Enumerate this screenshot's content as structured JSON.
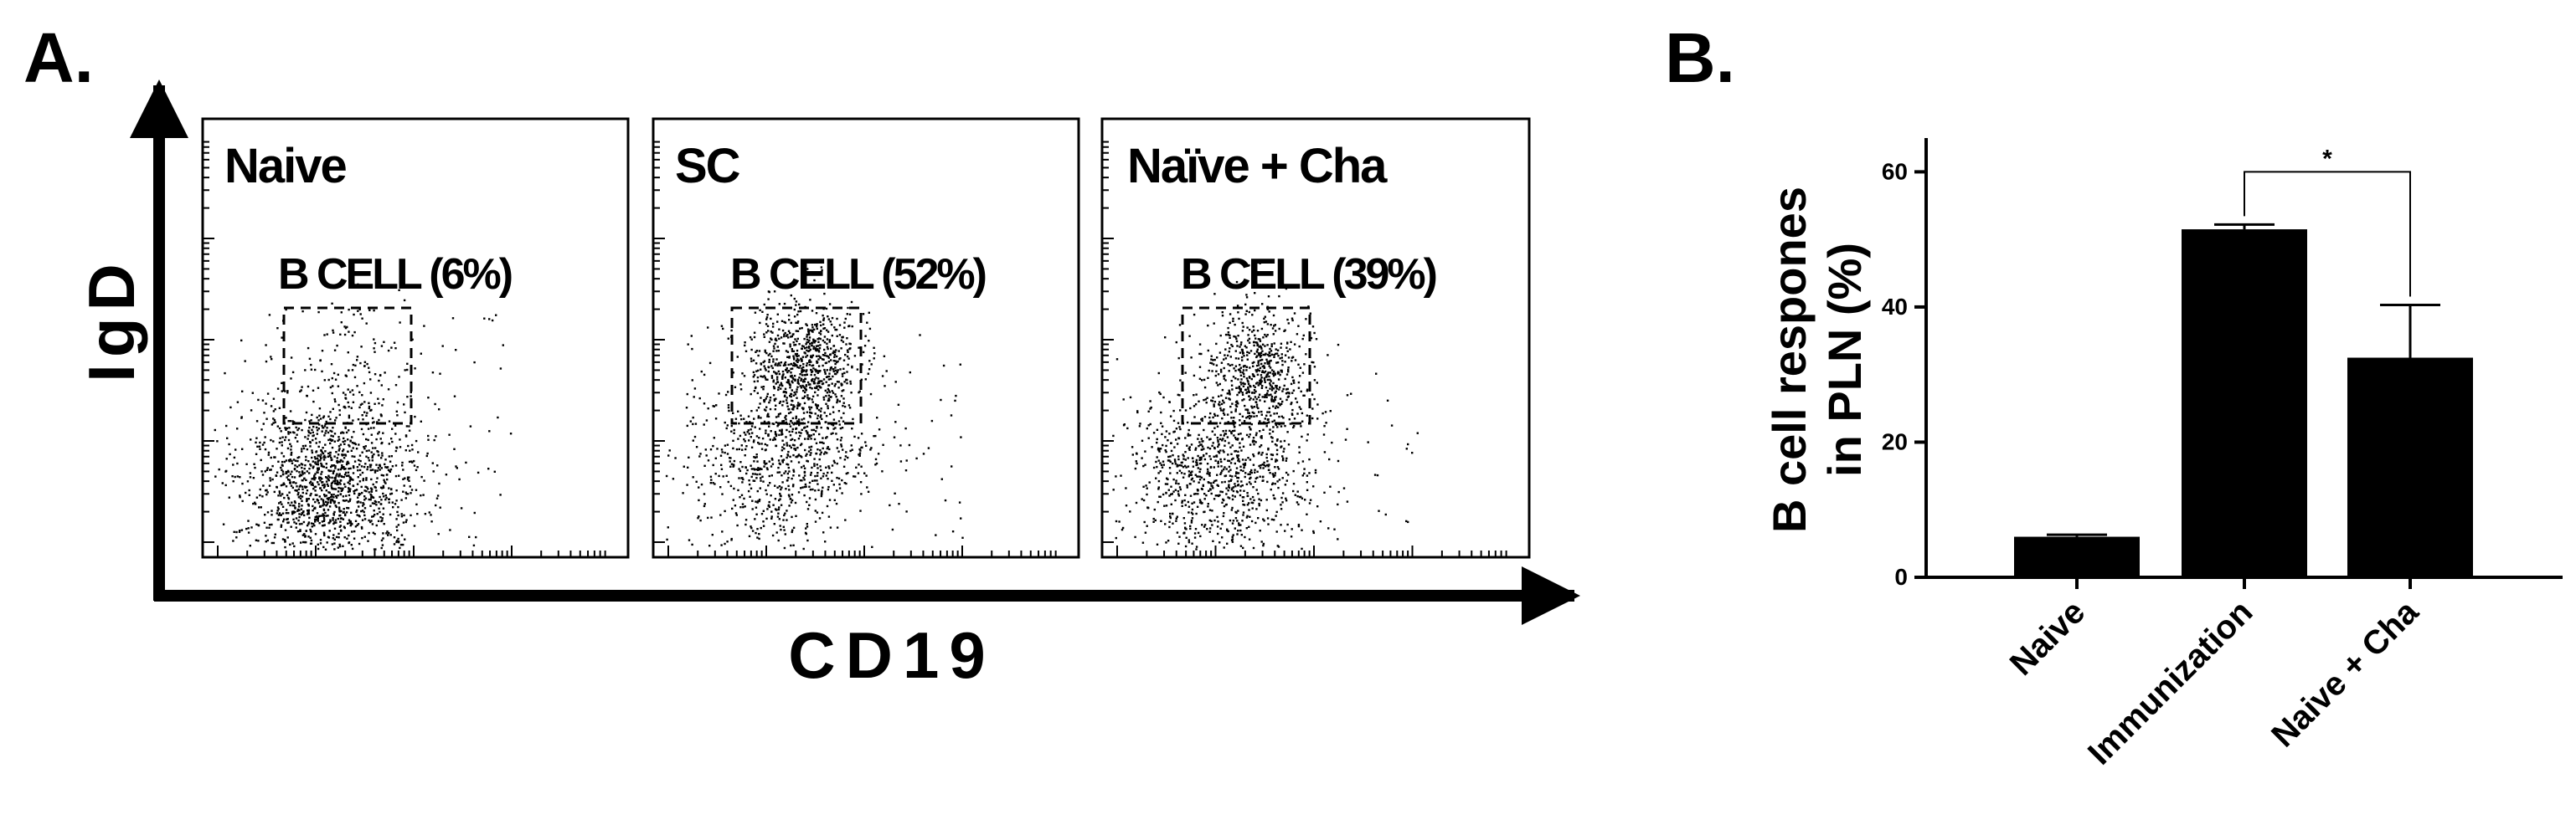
{
  "panel_a": {
    "label": "A.",
    "x_axis_label": "CD19",
    "y_axis_label": "IgD",
    "plots": [
      {
        "title": "Naive",
        "gate_label": "B CELL (6%)",
        "gate_percent": 6
      },
      {
        "title": "SC",
        "gate_label": "B CELL (52%)",
        "gate_percent": 52
      },
      {
        "title": "Naïve + Cha",
        "gate_label": "B CELL (39%)",
        "gate_percent": 39
      }
    ]
  },
  "panel_b": {
    "label": "B."
  },
  "chart_data": {
    "type": "bar",
    "title": "",
    "xlabel": "",
    "ylabel_line1": "B cell respones",
    "ylabel_line2": "in PLN (%)",
    "categories": [
      "Naive",
      "Immunization",
      "Naive + Cha"
    ],
    "values": [
      6,
      51.5,
      32.5
    ],
    "errors": [
      0.3,
      0.7,
      7.8
    ],
    "ylim": [
      0,
      65
    ],
    "yticks": [
      0,
      20,
      40,
      60
    ],
    "significance": {
      "from": 1,
      "to": 2,
      "label": "*"
    }
  },
  "colors": {
    "ink": "#000000",
    "background": "#ffffff"
  }
}
